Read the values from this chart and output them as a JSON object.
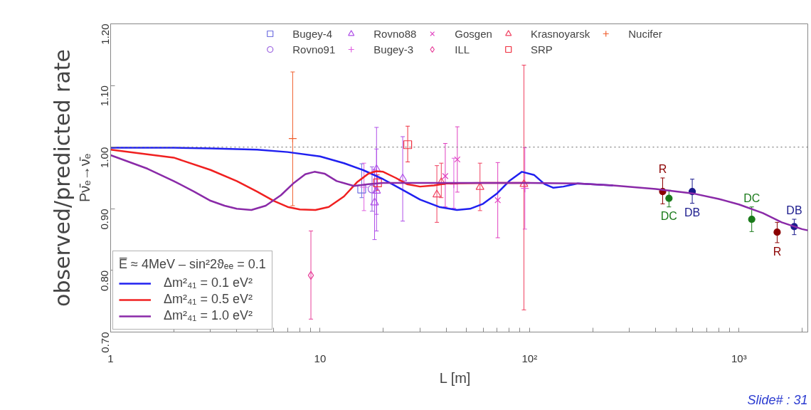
{
  "chart_data": {
    "type": "scatter",
    "ylabel": "Pν̄ₑ→ν̄ₑ",
    "xlabel": "L   [m]",
    "legend_title": "E̅ ≈ 4MeV – sin²2ϑₑₑ = 0.1",
    "annotations": [
      "observed/predicted rate",
      "Slide# : 31",
      {
        "text": "R",
        "x": 432,
        "y": 0.95
      },
      {
        "text": "DC",
        "x": 463,
        "y": 0.903
      },
      {
        "text": "DB",
        "x": 598,
        "y": 0.909
      },
      {
        "text": "DC",
        "x": 1150,
        "y": 0.903
      },
      {
        "text": "R",
        "x": 1521,
        "y": 0.845
      },
      {
        "text": "DB",
        "x": 1835,
        "y": 0.883
      }
    ],
    "xlim": [
      1,
      2130
    ],
    "ylim": [
      0.7,
      1.2
    ],
    "log": "x",
    "legend": "top",
    "grid": false,
    "xticks": [
      1,
      {
        "value": 2,
        "label": null
      },
      {
        "value": 3,
        "label": null
      },
      {
        "value": 4,
        "label": null
      },
      {
        "value": 5,
        "label": null
      },
      {
        "value": 6,
        "label": null
      },
      {
        "value": 7,
        "label": null
      },
      {
        "value": 8,
        "label": null
      },
      {
        "value": 9,
        "label": null
      },
      10,
      {
        "value": 20,
        "label": null
      },
      {
        "value": 30,
        "label": null
      },
      {
        "value": 40,
        "label": null
      },
      {
        "value": 50,
        "label": null
      },
      {
        "value": 60,
        "label": null
      },
      {
        "value": 70,
        "label": null
      },
      {
        "value": 80,
        "label": null
      },
      {
        "value": 90,
        "label": null
      },
      {
        "value": 100,
        "label": "10²"
      },
      {
        "value": 200,
        "label": null
      },
      {
        "value": 300,
        "label": null
      },
      {
        "value": 400,
        "label": null
      },
      {
        "value": 500,
        "label": null
      },
      {
        "value": 600,
        "label": null
      },
      {
        "value": 700,
        "label": null
      },
      {
        "value": 800,
        "label": null
      },
      {
        "value": 900,
        "label": null
      },
      {
        "value": 1000,
        "label": "10³"
      },
      {
        "value": 2000,
        "label": null
      }
    ],
    "yticks": [
      {
        "value": 0.7,
        "label": "0.70"
      },
      {
        "value": 0.8,
        "label": "0.80"
      },
      {
        "value": 0.9,
        "label": "0.90"
      },
      {
        "value": 1.0,
        "label": "1.00"
      },
      {
        "value": 1.1,
        "label": "1.10"
      },
      {
        "value": 1.2,
        "label": "1.20"
      }
    ],
    "ref_lines": [
      {
        "axis": "y",
        "value": 1.0,
        "color": "#808080",
        "line_style": "dotted"
      }
    ],
    "series": [
      {
        "name": "Bugey-4",
        "color": "#7070e0",
        "marker": "square",
        "x": [
          15.8
        ],
        "values": [
          0.932
        ],
        "errors": [
          [
            0.918,
            0.973
          ]
        ]
      },
      {
        "name": "Rovno91",
        "color": "#9a60e0",
        "marker": "circle",
        "x": [
          17.7
        ],
        "values": [
          0.932
        ],
        "errors": [
          [
            0.896,
            0.968
          ]
        ]
      },
      {
        "name": "Rovno88",
        "color": "#b050e8",
        "marker": "triangle",
        "x": [
          18.2,
          18.6,
          18.6,
          24.8
        ],
        "values": [
          0.91,
          0.929,
          0.964,
          0.949
        ],
        "errors": [
          [
            0.85,
            0.964
          ],
          [
            0.864,
            0.997
          ],
          [
            0.891,
            1.032
          ],
          [
            0.88,
            1.017
          ]
        ]
      },
      {
        "name": "Bugey-3",
        "color": "#e060e0",
        "marker": "cross",
        "x": [
          16.2,
          43.5,
          95
        ],
        "values": [
          0.935,
          0.94,
          0.933
        ],
        "errors": [
          [
            0.897,
            0.974
          ],
          [
            0.901,
            0.982
          ],
          [
            0.867,
            0.999
          ]
        ]
      },
      {
        "name": "Gosgen",
        "color": "#e040c0",
        "marker": "x",
        "x": [
          39.6,
          45.2,
          70.5
        ],
        "values": [
          0.953,
          0.98,
          0.914
        ],
        "errors": [
          [
            0.903,
            1.006
          ],
          [
            0.927,
            1.033
          ],
          [
            0.853,
            0.975
          ]
        ]
      },
      {
        "name": "ILL",
        "color": "#e8409a",
        "marker": "diamond",
        "x": [
          9.04
        ],
        "values": [
          0.792
        ],
        "errors": [
          [
            0.721,
            0.864
          ]
        ]
      },
      {
        "name": "Krasnoyarsk",
        "color": "#f04060",
        "marker": "triangle",
        "x": [
          36.1,
          37.9,
          58.0,
          94.0
        ],
        "values": [
          0.923,
          0.943,
          0.935,
          0.94
        ],
        "errors": [
          [
            0.878,
            0.97
          ],
          [
            0.918,
            0.974
          ],
          [
            0.897,
            0.974
          ],
          [
            0.736,
            1.133
          ]
        ]
      },
      {
        "name": "SRP",
        "color": "#f03040",
        "marker": "square",
        "x": [
          18.8,
          26.2
        ],
        "values": [
          0.942,
          1.004
        ],
        "errors": [
          [
            0.93,
            0.955
          ],
          [
            0.976,
            1.034
          ]
        ]
      },
      {
        "name": "Nucifer",
        "color": "#f06030",
        "marker": "cross",
        "x": [
          7.4
        ],
        "values": [
          1.014
        ],
        "errors": [
          [
            0.905,
            1.122
          ]
        ]
      },
      {
        "color": "#8b0000",
        "marker": "circle_filled",
        "x": [
          432,
          1521
        ],
        "values": [
          0.928,
          0.862
        ],
        "errors": [
          [
            0.908,
            0.95
          ],
          [
            0.845,
            0.878
          ]
        ]
      },
      {
        "color": "#1a7a1a",
        "marker": "circle_filled",
        "x": [
          463,
          1150
        ],
        "values": [
          0.917,
          0.883
        ],
        "errors": [
          [
            0.903,
            0.93
          ],
          [
            0.863,
            0.903
          ]
        ]
      },
      {
        "color": "#1a1a8c",
        "marker": "circle_filled",
        "x": [
          598,
          1835
        ],
        "values": [
          0.928,
          0.871
        ],
        "errors": [
          [
            0.909,
            0.948
          ],
          [
            0.858,
            0.883
          ]
        ]
      },
      {
        "name": "Δm²₄₁ = 0.1 eV²",
        "type": "line",
        "color": "#2020f0",
        "x": [
          1,
          2,
          3,
          5,
          7,
          10,
          13,
          16,
          20,
          25,
          30,
          37,
          45,
          52,
          60,
          70,
          80,
          92,
          105,
          118,
          130,
          145,
          170,
          250
        ],
        "values": [
          0.999,
          0.999,
          0.998,
          0.996,
          0.992,
          0.985,
          0.974,
          0.963,
          0.948,
          0.93,
          0.915,
          0.903,
          0.898,
          0.9,
          0.908,
          0.925,
          0.945,
          0.96,
          0.955,
          0.94,
          0.934,
          0.936,
          0.941,
          0.938
        ]
      },
      {
        "name": "Δm²₄₁ = 0.5 eV²",
        "type": "line",
        "color": "#f02020",
        "x": [
          1,
          2,
          3,
          4,
          5,
          6,
          7,
          8,
          9.5,
          11,
          13,
          15,
          17,
          18.5,
          20,
          23,
          26,
          30,
          35,
          40,
          60,
          100
        ],
        "values": [
          0.996,
          0.983,
          0.963,
          0.945,
          0.928,
          0.913,
          0.903,
          0.899,
          0.898,
          0.903,
          0.92,
          0.943,
          0.957,
          0.961,
          0.96,
          0.95,
          0.94,
          0.936,
          0.938,
          0.941,
          0.942,
          0.942
        ]
      },
      {
        "name": "Δm²₄₁ = 1.0 eV²",
        "type": "line",
        "color": "#8a2aa8",
        "x": [
          1,
          1.5,
          2,
          2.5,
          3,
          3.5,
          4,
          4.7,
          5.5,
          6.5,
          7.5,
          8.5,
          9.4,
          10.5,
          12,
          14.5,
          17,
          20,
          100,
          170,
          250,
          400,
          600,
          800,
          1000,
          1300,
          1600,
          2000,
          2130
        ],
        "values": [
          0.987,
          0.965,
          0.945,
          0.928,
          0.913,
          0.905,
          0.9,
          0.898,
          0.905,
          0.922,
          0.942,
          0.956,
          0.96,
          0.957,
          0.945,
          0.937,
          0.94,
          0.942,
          0.942,
          0.941,
          0.938,
          0.932,
          0.925,
          0.916,
          0.907,
          0.893,
          0.878,
          0.867,
          0.865
        ]
      }
    ]
  }
}
